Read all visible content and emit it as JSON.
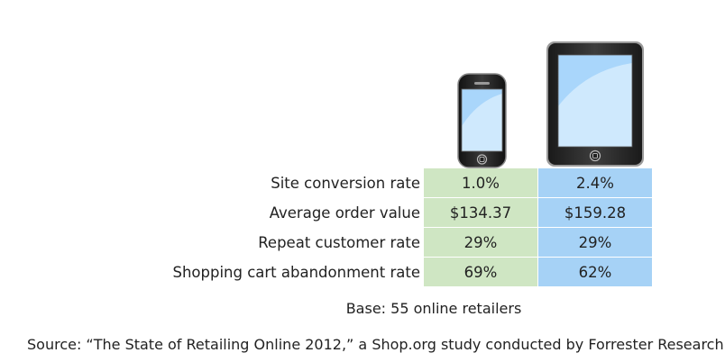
{
  "chart_data": {
    "type": "table",
    "columns": [
      "smartphone-icon",
      "tablet-icon"
    ],
    "rows": [
      {
        "label": "Site conversion rate",
        "values": [
          "1.0%",
          "2.4%"
        ]
      },
      {
        "label": "Average order value",
        "values": [
          "$134.37",
          "$159.28"
        ]
      },
      {
        "label": "Repeat customer rate",
        "values": [
          "29%",
          "29%"
        ]
      },
      {
        "label": "Shopping cart abandonment rate",
        "values": [
          "69%",
          "62%"
        ]
      }
    ],
    "colors": {
      "smartphone_column": "#cfe6c3",
      "tablet_column": "#a6d2f6"
    }
  },
  "base_note": "Base: 55 online retailers",
  "source_note": "Source: “The State of Retailing Online 2012,” a Shop.org study conducted by Forrester Research"
}
